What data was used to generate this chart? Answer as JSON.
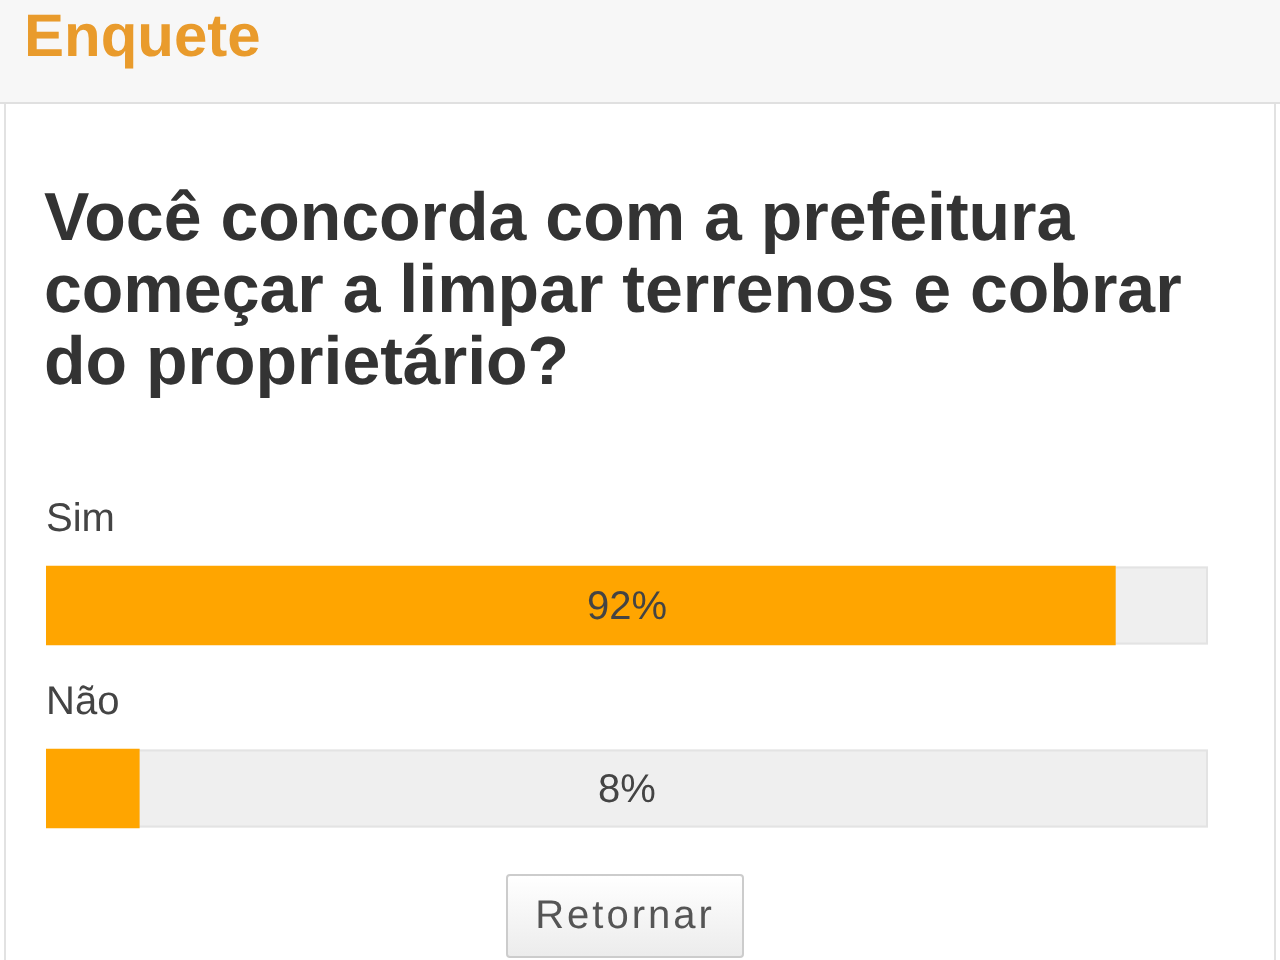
{
  "chart_data": {
    "type": "bar",
    "title": "Enquete",
    "subtitle": "Você concorda com a prefeitura começar a limpar terrenos e cobrar do proprietário?",
    "categories": [
      "Sim",
      "Não"
    ],
    "values": [
      92,
      8
    ],
    "color": "#ffa500",
    "orientation": "horizontal",
    "xlim": [
      0,
      100
    ],
    "value_labels": [
      "92%",
      "8%"
    ],
    "tick_labels": "y",
    "annotations": [
      "Retornar"
    ]
  }
}
